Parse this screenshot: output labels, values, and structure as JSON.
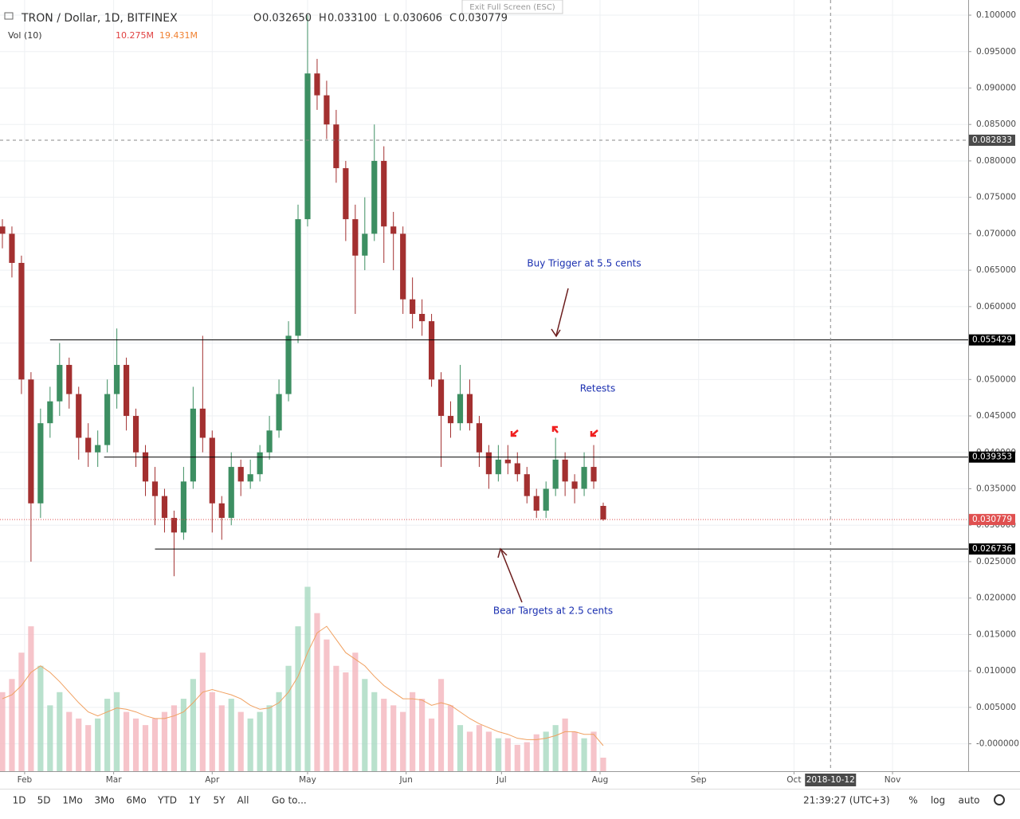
{
  "header": {
    "symbol": "TRON / Dollar, 1D, BITFINEX",
    "exit": "Exit Full Screen (ESC)",
    "ohlc": [
      {
        "key": "O",
        "text": "0.032650"
      },
      {
        "key": "H",
        "text": "0.033100"
      },
      {
        "key": "L",
        "text": "0.030606"
      },
      {
        "key": "C",
        "text": "0.030779"
      }
    ],
    "vol_label": "Vol (10)",
    "vol_value": "10.275M",
    "vol_ma": "19.431M"
  },
  "toolbar": {
    "ranges": [
      "1D",
      "5D",
      "1Mo",
      "3Mo",
      "6Mo",
      "YTD",
      "1Y",
      "5Y",
      "All"
    ],
    "goto": "Go to...",
    "clock": "21:39:27 (UTC+3)",
    "pct": "%",
    "log": "log",
    "auto": "auto"
  },
  "chart_data": {
    "type": "candlestick",
    "up_color": "#3d8f62",
    "down_color": "#a33030",
    "x": [
      0,
      3,
      6,
      9,
      12,
      15,
      18,
      21,
      24,
      27,
      30,
      33,
      36,
      39,
      42,
      45,
      48,
      51,
      54,
      57,
      60,
      63,
      66,
      69,
      72,
      75,
      78,
      81,
      84,
      87,
      90,
      93,
      96,
      99,
      102,
      105,
      108,
      111,
      114,
      117,
      120,
      123,
      126,
      129,
      132,
      135,
      138,
      141,
      144,
      147,
      150,
      153,
      156,
      159,
      162,
      165,
      168,
      171,
      174,
      177,
      180,
      183,
      186,
      189
    ],
    "open": [
      0.071,
      0.07,
      0.066,
      0.05,
      0.033,
      0.044,
      0.047,
      0.052,
      0.048,
      0.042,
      0.04,
      0.041,
      0.048,
      0.052,
      0.045,
      0.04,
      0.036,
      0.034,
      0.031,
      0.029,
      0.036,
      0.046,
      0.042,
      0.033,
      0.031,
      0.038,
      0.036,
      0.037,
      0.04,
      0.043,
      0.048,
      0.056,
      0.072,
      0.092,
      0.089,
      0.085,
      0.079,
      0.072,
      0.067,
      0.07,
      0.08,
      0.071,
      0.07,
      0.061,
      0.059,
      0.058,
      0.05,
      0.045,
      0.044,
      0.048,
      0.044,
      0.04,
      0.037,
      0.039,
      0.0385,
      0.037,
      0.034,
      0.032,
      0.035,
      0.039,
      0.036,
      0.035,
      0.038,
      0.03265
    ],
    "high": [
      0.072,
      0.071,
      0.067,
      0.051,
      0.046,
      0.049,
      0.055,
      0.053,
      0.049,
      0.044,
      0.043,
      0.05,
      0.057,
      0.053,
      0.046,
      0.041,
      0.038,
      0.035,
      0.032,
      0.038,
      0.049,
      0.056,
      0.043,
      0.034,
      0.04,
      0.039,
      0.039,
      0.041,
      0.045,
      0.05,
      0.058,
      0.074,
      0.1,
      0.094,
      0.091,
      0.087,
      0.08,
      0.074,
      0.075,
      0.085,
      0.082,
      0.073,
      0.071,
      0.064,
      0.061,
      0.059,
      0.051,
      0.047,
      0.052,
      0.05,
      0.045,
      0.041,
      0.041,
      0.041,
      0.04,
      0.038,
      0.035,
      0.036,
      0.042,
      0.04,
      0.037,
      0.04,
      0.041,
      0.0331
    ],
    "low": [
      0.068,
      0.064,
      0.048,
      0.025,
      0.031,
      0.042,
      0.045,
      0.046,
      0.039,
      0.038,
      0.038,
      0.04,
      0.046,
      0.043,
      0.038,
      0.034,
      0.03,
      0.029,
      0.023,
      0.028,
      0.035,
      0.04,
      0.029,
      0.028,
      0.03,
      0.034,
      0.035,
      0.036,
      0.039,
      0.042,
      0.047,
      0.055,
      0.071,
      0.087,
      0.083,
      0.077,
      0.069,
      0.059,
      0.065,
      0.069,
      0.066,
      0.065,
      0.059,
      0.057,
      0.056,
      0.049,
      0.038,
      0.042,
      0.043,
      0.043,
      0.038,
      0.035,
      0.036,
      0.037,
      0.036,
      0.033,
      0.031,
      0.031,
      0.034,
      0.034,
      0.033,
      0.034,
      0.035,
      0.030606
    ],
    "close": [
      0.07,
      0.066,
      0.05,
      0.033,
      0.044,
      0.047,
      0.052,
      0.048,
      0.042,
      0.04,
      0.041,
      0.048,
      0.052,
      0.045,
      0.04,
      0.036,
      0.034,
      0.031,
      0.029,
      0.036,
      0.046,
      0.042,
      0.033,
      0.031,
      0.038,
      0.036,
      0.037,
      0.04,
      0.043,
      0.048,
      0.056,
      0.072,
      0.092,
      0.089,
      0.085,
      0.079,
      0.072,
      0.067,
      0.07,
      0.08,
      0.071,
      0.07,
      0.061,
      0.059,
      0.058,
      0.05,
      0.045,
      0.044,
      0.048,
      0.044,
      0.04,
      0.037,
      0.039,
      0.0385,
      0.037,
      0.034,
      0.032,
      0.035,
      0.039,
      0.036,
      0.035,
      0.038,
      0.036,
      0.030779
    ],
    "volume": [
      60,
      70,
      90,
      110,
      80,
      50,
      60,
      45,
      40,
      35,
      40,
      55,
      60,
      45,
      40,
      35,
      40,
      45,
      50,
      55,
      70,
      90,
      60,
      50,
      55,
      45,
      40,
      45,
      50,
      60,
      80,
      110,
      140,
      120,
      100,
      80,
      75,
      90,
      70,
      60,
      55,
      50,
      45,
      60,
      55,
      40,
      70,
      50,
      35,
      30,
      35,
      30,
      25,
      25,
      20,
      22,
      28,
      30,
      35,
      40,
      30,
      25,
      30,
      10.275
    ],
    "volume_ma": [
      55,
      58,
      65,
      75,
      80,
      75,
      68,
      60,
      52,
      45,
      42,
      45,
      48,
      47,
      45,
      42,
      40,
      40,
      42,
      45,
      52,
      60,
      62,
      60,
      58,
      55,
      50,
      47,
      48,
      52,
      60,
      72,
      90,
      105,
      110,
      100,
      90,
      85,
      80,
      72,
      65,
      60,
      55,
      55,
      54,
      50,
      52,
      50,
      45,
      40,
      36,
      33,
      30,
      28,
      25,
      24,
      24,
      25,
      27,
      30,
      30,
      28,
      28,
      19.431
    ],
    "volume_ylim": [
      0,
      150
    ],
    "volume_ma_color": "#f0a060",
    "xlim": [
      -0.75,
      303.8
    ],
    "xticks": [
      {
        "value": 7,
        "label": "Feb"
      },
      {
        "value": 35,
        "label": "Mar"
      },
      {
        "value": 66,
        "label": "Apr"
      },
      {
        "value": 96,
        "label": "May"
      },
      {
        "value": 127,
        "label": "Jun"
      },
      {
        "value": 157,
        "label": "Jul"
      },
      {
        "value": 188,
        "label": "Aug"
      },
      {
        "value": 219,
        "label": "Sep"
      },
      {
        "value": 249,
        "label": "Oct"
      },
      {
        "value": 280,
        "label": "Nov"
      }
    ],
    "ylim": [
      -0.00376,
      0.10208
    ],
    "yticks": [
      {
        "value": 0.1,
        "label": "0.100000"
      },
      {
        "value": 0.095,
        "label": "0.095000"
      },
      {
        "value": 0.09,
        "label": "0.090000"
      },
      {
        "value": 0.085,
        "label": "0.085000"
      },
      {
        "value": 0.08,
        "label": "0.080000"
      },
      {
        "value": 0.075,
        "label": "0.075000"
      },
      {
        "value": 0.07,
        "label": "0.070000"
      },
      {
        "value": 0.065,
        "label": "0.065000"
      },
      {
        "value": 0.06,
        "label": "0.060000"
      },
      {
        "value": 0.055,
        "label": "0.055000"
      },
      {
        "value": 0.05,
        "label": "0.050000"
      },
      {
        "value": 0.045,
        "label": "0.045000"
      },
      {
        "value": 0.04,
        "label": "0.040000"
      },
      {
        "value": 0.035,
        "label": "0.035000"
      },
      {
        "value": 0.03,
        "label": "0.030000"
      },
      {
        "value": 0.025,
        "label": "0.025000"
      },
      {
        "value": 0.02,
        "label": "0.020000"
      },
      {
        "value": 0.015,
        "label": "0.015000"
      },
      {
        "value": 0.01,
        "label": "0.010000"
      },
      {
        "value": 0.005,
        "label": "0.005000"
      },
      {
        "value": 0,
        "label": "-0.000000"
      }
    ],
    "grid": true,
    "levels": [
      {
        "value": 0.055429,
        "start": 15
      },
      {
        "value": 0.039353,
        "start": 32
      },
      {
        "value": 0.026736,
        "start": 48
      }
    ],
    "last_price": 0.030779,
    "last_color": "#e05050",
    "crosshair": {
      "y": 0.082833,
      "x": {
        "value": 260.5,
        "label": "2018-10-12"
      }
    },
    "annotations": [
      {
        "text": "Buy Trigger at 5.5 cents"
      },
      {
        "text": "Retests"
      },
      {
        "text": "Bear Targets at 2.5 cents"
      }
    ]
  }
}
